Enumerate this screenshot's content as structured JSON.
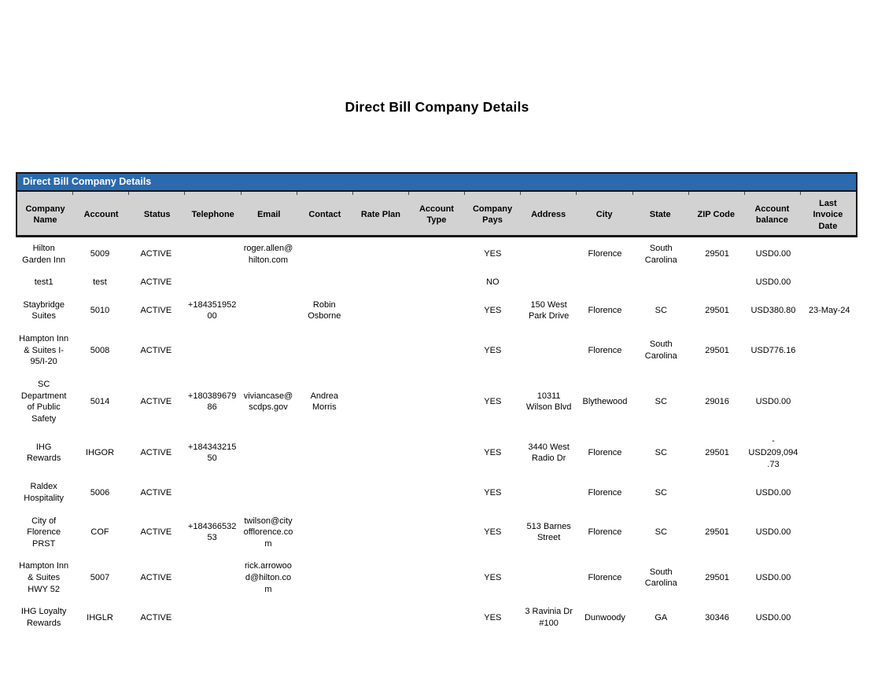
{
  "page_title": "Direct Bill Company Details",
  "colors": {
    "title_bar_bg": "#2A6AAD",
    "header_bg": "#D2D2D2",
    "border": "#141414",
    "title_text": "#FFFFFF"
  },
  "table": {
    "title": "Direct Bill Company Details",
    "columns": [
      "Company Name",
      "Account",
      "Status",
      "Telephone",
      "Email",
      "Contact",
      "Rate Plan",
      "Account Type",
      "Company Pays",
      "Address",
      "City",
      "State",
      "ZIP Code",
      "Account balance",
      "Last Invoice Date"
    ],
    "rows": [
      [
        "Hilton Garden Inn",
        "5009",
        "ACTIVE",
        "",
        "roger.allen@hilton.com",
        "",
        "",
        "",
        "YES",
        "",
        "Florence",
        "South Carolina",
        "29501",
        "USD0.00",
        ""
      ],
      [
        "test1",
        "test",
        "ACTIVE",
        "",
        "",
        "",
        "",
        "",
        "NO",
        "",
        "",
        "",
        "",
        "USD0.00",
        ""
      ],
      [
        "Staybridge Suites",
        "5010",
        "ACTIVE",
        "+18435195200",
        "",
        "Robin Osborne",
        "",
        "",
        "YES",
        "150 West Park Drive",
        "Florence",
        "SC",
        "29501",
        "USD380.80",
        "23-May-24"
      ],
      [
        "Hampton Inn & Suites I-95/I-20",
        "5008",
        "ACTIVE",
        "",
        "",
        "",
        "",
        "",
        "YES",
        "",
        "Florence",
        "South Carolina",
        "29501",
        "USD776.16",
        ""
      ],
      [
        "SC Department of Public Safety",
        "5014",
        "ACTIVE",
        "+18038967986",
        "viviancase@scdps.gov",
        "Andrea Morris",
        "",
        "",
        "YES",
        "10311 Wilson Blvd",
        "Blythewood",
        "SC",
        "29016",
        "USD0.00",
        ""
      ],
      [
        "IHG Rewards",
        "IHGOR",
        "ACTIVE",
        "+18434321550",
        "",
        "",
        "",
        "",
        "YES",
        "3440 West Radio Dr",
        "Florence",
        "SC",
        "29501",
        "-USD209,094.73",
        ""
      ],
      [
        "Raldex Hospitality",
        "5006",
        "ACTIVE",
        "",
        "",
        "",
        "",
        "",
        "YES",
        "",
        "Florence",
        "SC",
        "",
        "USD0.00",
        ""
      ],
      [
        "City of Florence PRST",
        "COF",
        "ACTIVE",
        "+18436653253",
        "twilson@cityofflorence.com",
        "",
        "",
        "",
        "YES",
        "513 Barnes Street",
        "Florence",
        "SC",
        "29501",
        "USD0.00",
        ""
      ],
      [
        "Hampton Inn & Suites HWY 52",
        "5007",
        "ACTIVE",
        "",
        "rick.arrowood@hilton.com",
        "",
        "",
        "",
        "YES",
        "",
        "Florence",
        "South Carolina",
        "29501",
        "USD0.00",
        ""
      ],
      [
        "IHG Loyalty Rewards",
        "IHGLR",
        "ACTIVE",
        "",
        "",
        "",
        "",
        "",
        "YES",
        "3 Ravinia Dr #100",
        "Dunwoody",
        "GA",
        "30346",
        "USD0.00",
        ""
      ]
    ]
  }
}
